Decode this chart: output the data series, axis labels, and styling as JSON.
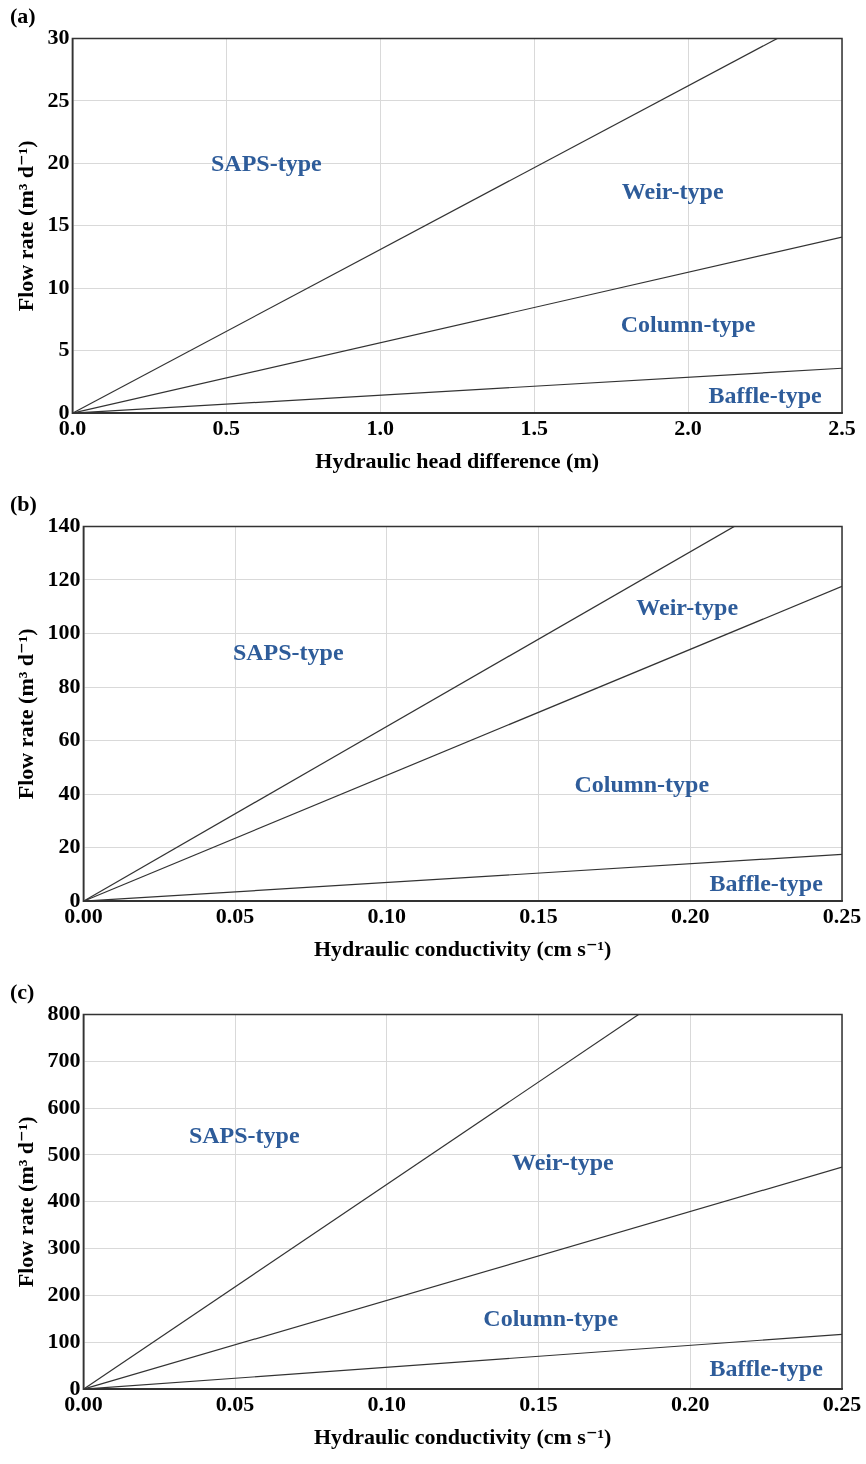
{
  "chart_data": [
    {
      "type": "line",
      "title": "(a)",
      "xlabel": "Hydraulic head difference (m)",
      "ylabel": "Flow rate (m³ d⁻¹)",
      "series": [
        {
          "color": "#333333",
          "x": [
            0,
            2.29
          ],
          "values": [
            0,
            30
          ]
        },
        {
          "color": "#333333",
          "x": [
            0,
            2.5
          ],
          "values": [
            0,
            14.1
          ]
        },
        {
          "color": "#333333",
          "x": [
            0,
            2.5
          ],
          "values": [
            0,
            3.6
          ]
        }
      ],
      "xlim": [
        0,
        2.5
      ],
      "xticks": [
        {
          "value": 0,
          "label": "0.0"
        },
        0.5,
        {
          "value": 1,
          "label": "1.0"
        },
        1.5,
        {
          "value": 2,
          "label": "2.0"
        },
        2.5
      ],
      "ylim": [
        0,
        30
      ],
      "yticks": [
        0,
        5,
        10,
        15,
        20,
        25,
        30
      ],
      "grid": true,
      "annotations": [
        "SAPS-type",
        "Weir-type",
        "Column-type",
        "Baffle-type"
      ]
    },
    {
      "type": "line",
      "title": "(b)",
      "xlabel": "Hydraulic conductivity (cm s⁻¹)",
      "ylabel": "Flow rate (m³ d⁻¹)",
      "series": [
        {
          "color": "#333333",
          "x": [
            0,
            0.2145
          ],
          "values": [
            0,
            140
          ]
        },
        {
          "color": "#333333",
          "x": [
            0,
            0.25
          ],
          "values": [
            0,
            117.6
          ]
        },
        {
          "color": "#333333",
          "x": [
            0,
            0.25
          ],
          "values": [
            0,
            17.5
          ]
        }
      ],
      "xlim": [
        0,
        0.25
      ],
      "xticks": [
        {
          "value": 0,
          "label": "0.00"
        },
        0.05,
        {
          "value": 0.1,
          "label": "0.10"
        },
        0.15,
        {
          "value": 0.2,
          "label": "0.20"
        },
        0.25
      ],
      "ylim": [
        0,
        140
      ],
      "yticks": [
        0,
        20,
        40,
        60,
        80,
        100,
        120,
        140
      ],
      "grid": true,
      "annotations": [
        "SAPS-type",
        "Weir-type",
        "Column-type",
        "Baffle-type"
      ]
    },
    {
      "type": "line",
      "title": "(c)",
      "xlabel": "Hydraulic conductivity (cm s⁻¹)",
      "ylabel": "Flow rate (m³ d⁻¹)",
      "series": [
        {
          "color": "#333333",
          "x": [
            0,
            0.183
          ],
          "values": [
            0,
            800
          ]
        },
        {
          "color": "#333333",
          "x": [
            0,
            0.25
          ],
          "values": [
            0,
            474
          ]
        },
        {
          "color": "#333333",
          "x": [
            0,
            0.25
          ],
          "values": [
            0,
            117
          ]
        }
      ],
      "xlim": [
        0,
        0.25
      ],
      "xticks": [
        {
          "value": 0,
          "label": "0.00"
        },
        0.05,
        {
          "value": 0.1,
          "label": "0.10"
        },
        0.15,
        {
          "value": 0.2,
          "label": "0.20"
        },
        0.25
      ],
      "ylim": [
        0,
        800
      ],
      "yticks": [
        0,
        100,
        200,
        300,
        400,
        500,
        600,
        700,
        800
      ],
      "grid": true,
      "annotations": [
        "SAPS-type",
        "Weir-type",
        "Column-type",
        "Baffle-type"
      ]
    }
  ]
}
